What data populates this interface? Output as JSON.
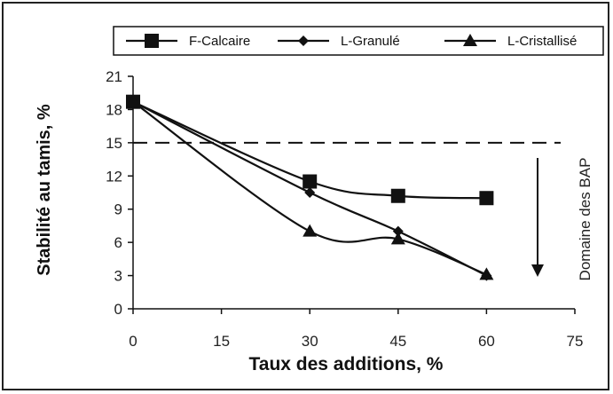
{
  "chart_data": {
    "type": "line",
    "xlabel": "Taux des additions, %",
    "ylabel": "Stabilité au tamis, %",
    "xlim": [
      0,
      75
    ],
    "ylim": [
      0,
      21
    ],
    "xticks": [
      0,
      15,
      30,
      45,
      60,
      75
    ],
    "yticks": [
      0,
      3,
      6,
      9,
      12,
      15,
      18,
      21
    ],
    "grid": false,
    "legend_position": "top",
    "series": [
      {
        "name": "F-Calcaire",
        "marker": "square",
        "x": [
          0,
          30,
          45,
          60
        ],
        "values": [
          18.7,
          11.5,
          10.2,
          10.0
        ]
      },
      {
        "name": "L-Granulé",
        "marker": "diamond",
        "x": [
          0,
          30,
          45,
          60
        ],
        "values": [
          18.7,
          10.5,
          7.0,
          3.0
        ]
      },
      {
        "name": "L-Cristallisé",
        "marker": "triangle",
        "x": [
          0,
          30,
          45,
          60
        ],
        "values": [
          18.7,
          7.0,
          6.3,
          3.1
        ]
      }
    ],
    "reference_line": {
      "y": 15,
      "style": "dashed"
    },
    "annotation": {
      "text": "Domaine des BAP",
      "arrow": "down"
    }
  }
}
